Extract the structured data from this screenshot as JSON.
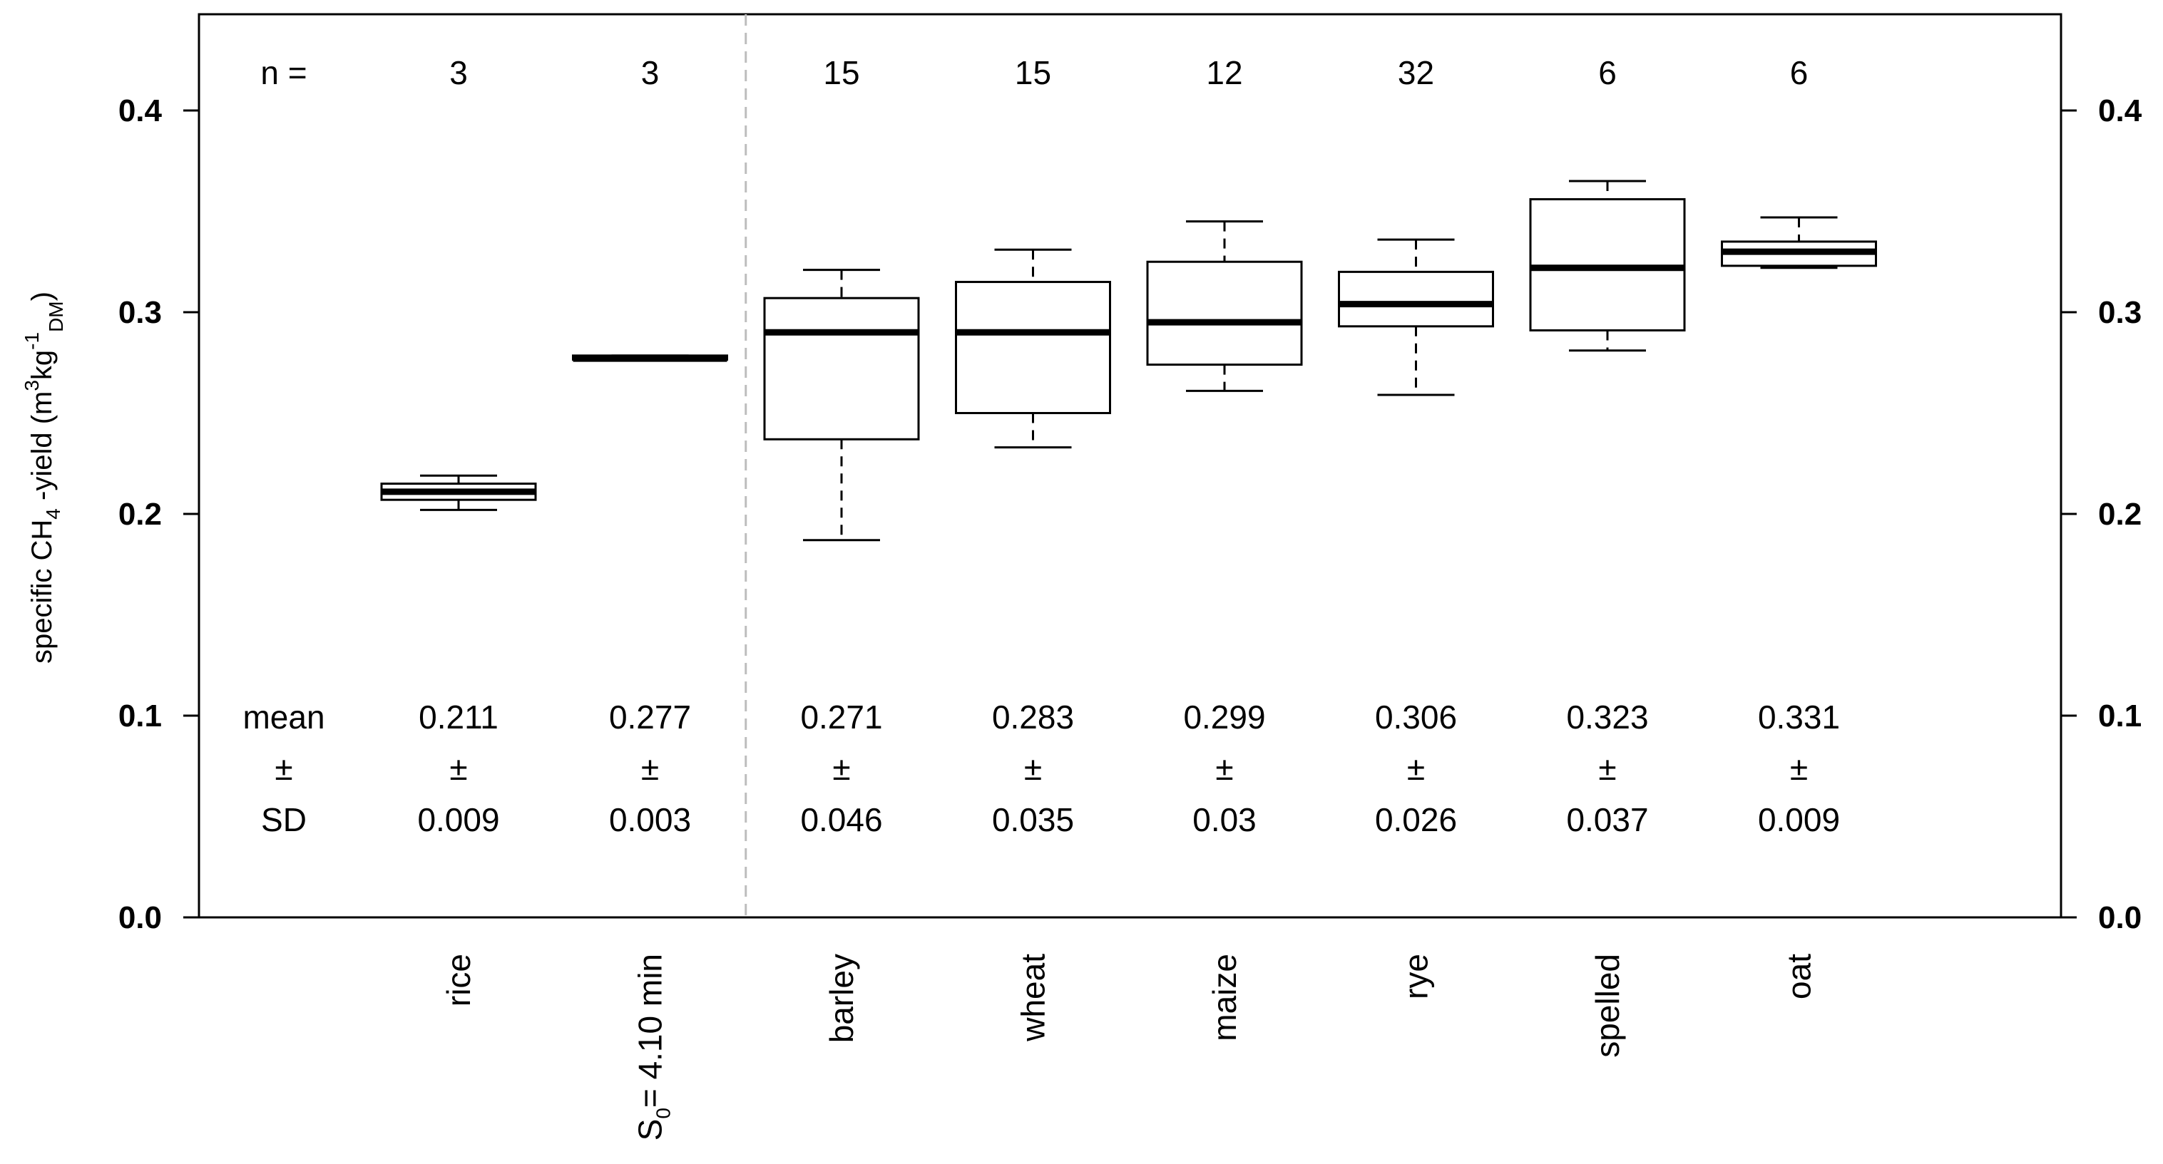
{
  "chart_data": {
    "type": "boxplot",
    "ylabel": {
      "prefix": "specific CH",
      "sub1": "4",
      "mid": " -yield (m",
      "sup1": "3",
      "mid2": "kg",
      "sup2": "-1",
      "sub2": "DM",
      "suffix": ")"
    },
    "ylim": [
      0,
      0.45
    ],
    "yticks": [
      "0.0",
      "0.1",
      "0.2",
      "0.3",
      "0.4"
    ],
    "n_label": "n =",
    "mean_label": "mean",
    "pm_label": "±",
    "sd_label": "SD",
    "separator_after_index": 1,
    "series": [
      {
        "name": "rice",
        "n": "3",
        "mean": "0.211",
        "sd": "0.009",
        "pm": "±",
        "whisker_low": 0.202,
        "q1": 0.207,
        "median": 0.211,
        "q3": 0.215,
        "whisker_high": 0.219,
        "dashed_whiskers": false
      },
      {
        "name": "S0= 4.10 min",
        "label_main": "S",
        "label_sub": "0",
        "label_rest": "= 4.10 min",
        "n": "3",
        "mean": "0.277",
        "sd": "0.003",
        "pm": "±",
        "whisker_low": 0.2765,
        "q1": 0.2765,
        "median": 0.277,
        "q3": 0.2785,
        "whisker_high": 0.2785,
        "dashed_whiskers": false
      },
      {
        "name": "barley",
        "n": "15",
        "mean": "0.271",
        "sd": "0.046",
        "pm": "±",
        "whisker_low": 0.187,
        "q1": 0.237,
        "median": 0.29,
        "q3": 0.307,
        "whisker_high": 0.321,
        "dashed_whiskers": true
      },
      {
        "name": "wheat",
        "n": "15",
        "mean": "0.283",
        "sd": "0.035",
        "pm": "±",
        "whisker_low": 0.233,
        "q1": 0.25,
        "median": 0.29,
        "q3": 0.315,
        "whisker_high": 0.331,
        "dashed_whiskers": true
      },
      {
        "name": "maize",
        "n": "12",
        "mean": "0.299",
        "sd": "0.03",
        "pm": "±",
        "whisker_low": 0.261,
        "q1": 0.274,
        "median": 0.295,
        "q3": 0.325,
        "whisker_high": 0.345,
        "dashed_whiskers": true
      },
      {
        "name": "rye",
        "n": "32",
        "mean": "0.306",
        "sd": "0.026",
        "pm": "±",
        "whisker_low": 0.259,
        "q1": 0.293,
        "median": 0.304,
        "q3": 0.32,
        "whisker_high": 0.336,
        "dashed_whiskers": true
      },
      {
        "name": "spelled",
        "n": "6",
        "mean": "0.323",
        "sd": "0.037",
        "pm": "±",
        "whisker_low": 0.281,
        "q1": 0.291,
        "median": 0.322,
        "q3": 0.356,
        "whisker_high": 0.365,
        "dashed_whiskers": true
      },
      {
        "name": "oat",
        "n": "6",
        "mean": "0.331",
        "sd": "0.009",
        "pm": "±",
        "whisker_low": 0.322,
        "q1": 0.323,
        "median": 0.33,
        "q3": 0.335,
        "whisker_high": 0.347,
        "dashed_whiskers": true
      }
    ]
  }
}
